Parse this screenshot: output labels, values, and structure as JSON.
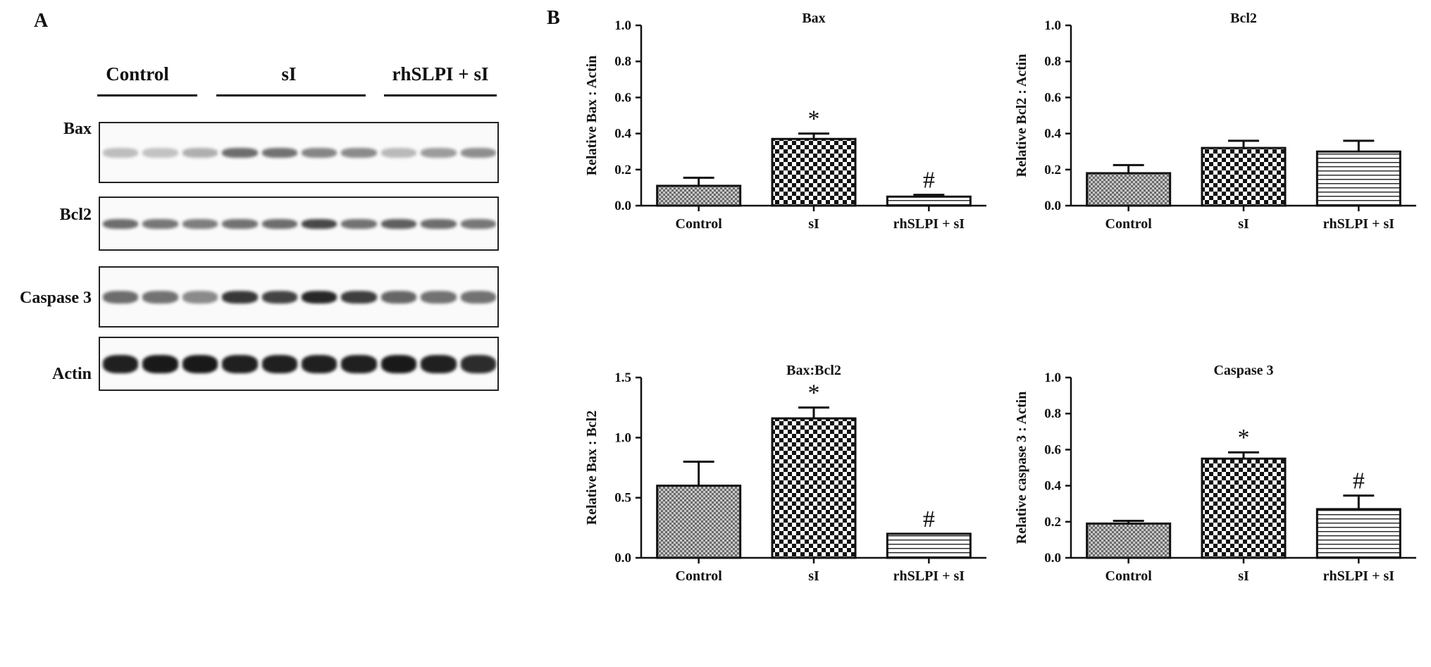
{
  "panel_a": {
    "letter": "A",
    "groups": [
      "Control",
      "sI",
      "rhSLPI + sI"
    ],
    "bands": [
      {
        "label": "Bax",
        "intensity": [
          0.28,
          0.26,
          0.34,
          0.62,
          0.6,
          0.52,
          0.5,
          0.3,
          0.42,
          0.48
        ]
      },
      {
        "label": "Bcl2",
        "intensity": [
          0.62,
          0.58,
          0.55,
          0.6,
          0.62,
          0.78,
          0.6,
          0.68,
          0.62,
          0.58
        ]
      },
      {
        "label": "Caspase 3",
        "intensity": [
          0.62,
          0.6,
          0.5,
          0.85,
          0.8,
          0.92,
          0.82,
          0.65,
          0.6,
          0.6
        ]
      },
      {
        "label": "Actin",
        "intensity": [
          0.95,
          0.98,
          0.98,
          0.95,
          0.95,
          0.95,
          0.95,
          0.98,
          0.95,
          0.9
        ]
      }
    ]
  },
  "panel_b": {
    "letter": "B"
  },
  "chart_data": [
    {
      "type": "bar",
      "title": "Bax",
      "ylabel": "Relative Bax : Actin",
      "xlabel": "",
      "categories": [
        "Control",
        "sI",
        "rhSLPI + sI"
      ],
      "values": [
        0.11,
        0.37,
        0.05
      ],
      "errors": [
        0.045,
        0.03,
        0.01
      ],
      "significance": [
        "",
        "*",
        "#"
      ],
      "patterns": [
        "fine-check",
        "checker",
        "hlines"
      ],
      "ylim": [
        0,
        1.0
      ],
      "yticks": [
        0.0,
        0.2,
        0.4,
        0.6,
        0.8,
        1.0
      ],
      "ytick_labels": [
        "0.0",
        "0.2",
        "0.4",
        "0.6",
        "0.8",
        "1.0"
      ],
      "grid": false
    },
    {
      "type": "bar",
      "title": "Bcl2",
      "ylabel": "Relative Bcl2 : Actin",
      "xlabel": "",
      "categories": [
        "Control",
        "sI",
        "rhSLPI + sI"
      ],
      "values": [
        0.18,
        0.32,
        0.3
      ],
      "errors": [
        0.045,
        0.04,
        0.06
      ],
      "significance": [
        "",
        "",
        ""
      ],
      "patterns": [
        "fine-check",
        "checker",
        "hlines"
      ],
      "ylim": [
        0,
        1.0
      ],
      "yticks": [
        0.0,
        0.2,
        0.4,
        0.6,
        0.8,
        1.0
      ],
      "ytick_labels": [
        "0.0",
        "0.2",
        "0.4",
        "0.6",
        "0.8",
        "1.0"
      ],
      "grid": false
    },
    {
      "type": "bar",
      "title": "Bax:Bcl2",
      "ylabel": "Relative Bax : Bcl2",
      "xlabel": "",
      "categories": [
        "Control",
        "sI",
        "rhSLPI + sI"
      ],
      "values": [
        0.6,
        1.16,
        0.2
      ],
      "errors": [
        0.2,
        0.09,
        0.0
      ],
      "significance": [
        "",
        "*",
        "#"
      ],
      "patterns": [
        "fine-check",
        "checker",
        "hlines"
      ],
      "ylim": [
        0,
        1.5
      ],
      "yticks": [
        0.0,
        0.5,
        1.0,
        1.5
      ],
      "ytick_labels": [
        "0.0",
        "0.5",
        "1.0",
        "1.5"
      ],
      "grid": false
    },
    {
      "type": "bar",
      "title": "Caspase 3",
      "ylabel": "Relative caspase 3 : Actin",
      "xlabel": "",
      "categories": [
        "Control",
        "sI",
        "rhSLPI + sI"
      ],
      "values": [
        0.19,
        0.55,
        0.27
      ],
      "errors": [
        0.015,
        0.035,
        0.075
      ],
      "significance": [
        "",
        "*",
        "#"
      ],
      "patterns": [
        "fine-check",
        "checker",
        "hlines"
      ],
      "ylim": [
        0,
        1.0
      ],
      "yticks": [
        0.0,
        0.2,
        0.4,
        0.6,
        0.8,
        1.0
      ],
      "ytick_labels": [
        "0.0",
        "0.2",
        "0.4",
        "0.6",
        "0.8",
        "1.0"
      ],
      "grid": false
    }
  ]
}
